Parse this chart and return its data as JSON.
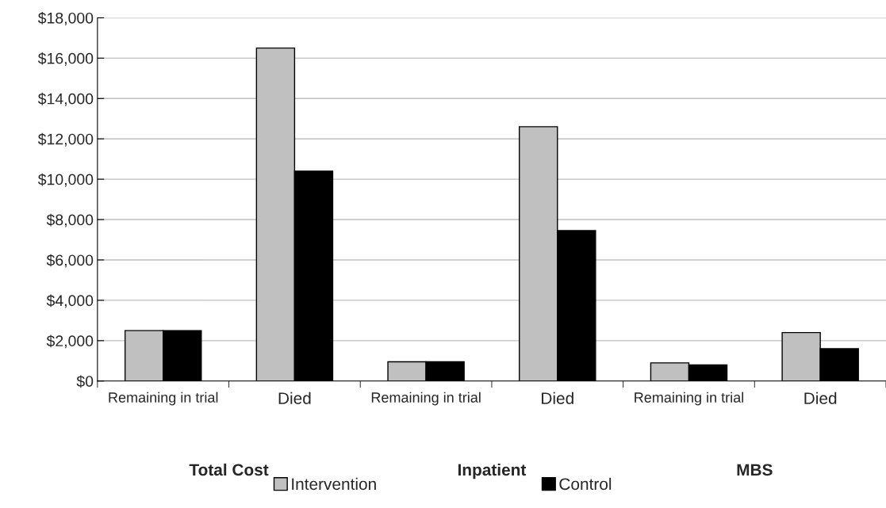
{
  "chart_data": {
    "type": "bar",
    "categories": [
      "Remaining in trial",
      "Died",
      "Remaining in trial",
      "Died",
      "Remaining in trial",
      "Died"
    ],
    "series": [
      {
        "name": "Intervention",
        "color": "#c0c0c0",
        "values": [
          2500,
          16500,
          950,
          12600,
          900,
          2400
        ]
      },
      {
        "name": "Control",
        "color": "#000000",
        "values": [
          2500,
          10400,
          950,
          7450,
          800,
          1600
        ]
      }
    ],
    "annotations": [
      "Total Cost",
      "Inpatient",
      "MBS"
    ],
    "ylim": [
      0,
      18000
    ],
    "yticks": [
      {
        "value": 0,
        "label": "$0"
      },
      {
        "value": 2000,
        "label": "$2,000"
      },
      {
        "value": 4000,
        "label": "$4,000"
      },
      {
        "value": 6000,
        "label": "$6,000"
      },
      {
        "value": 8000,
        "label": "$8,000"
      },
      {
        "value": 10000,
        "label": "$10,000"
      },
      {
        "value": 12000,
        "label": "$12,000"
      },
      {
        "value": 14000,
        "label": "$14,000"
      },
      {
        "value": 16000,
        "label": "$16,000"
      },
      {
        "value": 18000,
        "label": "$18,000"
      }
    ],
    "grid": "y",
    "legend": "bottom"
  }
}
